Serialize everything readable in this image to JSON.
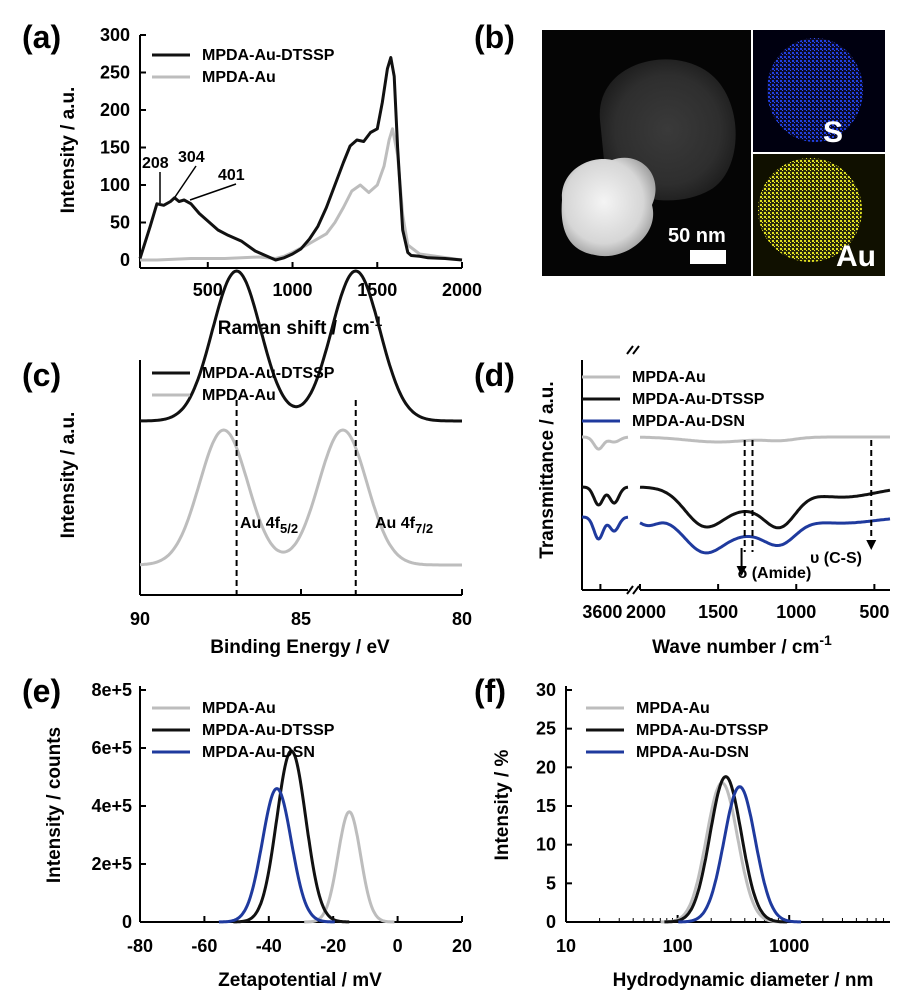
{
  "panels": {
    "a": "(a)",
    "b": "(b)",
    "c": "(c)",
    "d": "(d)",
    "e": "(e)",
    "f": "(f)"
  },
  "panel_b": {
    "scale_text": "50 nm",
    "map_s_label": "S",
    "map_au_label": "Au",
    "colors": {
      "s_map": "#1c2fc8",
      "au_map": "#c8c81c"
    }
  },
  "colors": {
    "black": "#111111",
    "gray": "#bdbdbd",
    "blue": "#1f3a9e"
  },
  "chart_data": [
    {
      "panel": "a",
      "type": "line",
      "xlabel": "Raman shift / cm",
      "xlabel_sup": "-1",
      "ylabel": "Intensity / a.u.",
      "xlim": [
        100,
        2000
      ],
      "ylim": [
        0,
        300
      ],
      "xticks": [
        500,
        1000,
        1500,
        2000
      ],
      "yticks": [
        0,
        50,
        100,
        150,
        200,
        250,
        300
      ],
      "legend_position": "top-left",
      "series": [
        {
          "name": "MPDA-Au-DTSSP",
          "color": "#111111",
          "x": [
            100,
            160,
            200,
            240,
            280,
            304,
            330,
            360,
            401,
            450,
            500,
            560,
            620,
            700,
            780,
            850,
            900,
            950,
            1000,
            1050,
            1100,
            1150,
            1200,
            1250,
            1300,
            1340,
            1380,
            1420,
            1460,
            1500,
            1530,
            1560,
            1580,
            1600,
            1620,
            1650,
            1680,
            1700,
            1750,
            1800,
            1900,
            2000
          ],
          "y": [
            2,
            45,
            75,
            73,
            78,
            83,
            78,
            80,
            75,
            62,
            52,
            40,
            33,
            25,
            12,
            5,
            0,
            3,
            8,
            15,
            28,
            45,
            70,
            100,
            130,
            152,
            160,
            158,
            170,
            175,
            210,
            255,
            270,
            245,
            150,
            40,
            10,
            6,
            5,
            3,
            2,
            0
          ]
        },
        {
          "name": "MPDA-Au",
          "color": "#bdbdbd",
          "x": [
            100,
            200,
            300,
            400,
            500,
            600,
            700,
            800,
            900,
            950,
            1000,
            1100,
            1200,
            1250,
            1300,
            1350,
            1400,
            1450,
            1500,
            1540,
            1570,
            1590,
            1620,
            1650,
            1680,
            1750,
            1850,
            2000
          ],
          "y": [
            0,
            0,
            1,
            2,
            2,
            2,
            3,
            4,
            2,
            5,
            10,
            22,
            35,
            50,
            70,
            92,
            100,
            90,
            100,
            125,
            160,
            175,
            140,
            60,
            20,
            8,
            5,
            0
          ]
        }
      ],
      "annotations": [
        "208",
        "304",
        "401"
      ]
    },
    {
      "panel": "c",
      "type": "line",
      "xlabel": "Binding Energy / eV",
      "ylabel": "Intensity / a.u.",
      "xlim": [
        90,
        80
      ],
      "xticks": [
        90,
        85,
        80
      ],
      "legend_position": "top-left",
      "series": [
        {
          "name": "MPDA-Au-DTSSP",
          "color": "#111111",
          "peaks": [
            87.0,
            83.3
          ],
          "baseline": 0.48,
          "height": 0.5
        },
        {
          "name": "MPDA-Au",
          "color": "#bdbdbd",
          "peaks": [
            87.4,
            83.7
          ],
          "baseline": 0.0,
          "height": 0.45
        }
      ],
      "annotations": {
        "au45": "Au 4f",
        "au45_sub": "5/2",
        "au47": "Au 4f",
        "au47_sub": "7/2",
        "ref_lines": [
          87.0,
          83.3
        ]
      }
    },
    {
      "panel": "d",
      "type": "line",
      "xlabel": "Wave number / cm",
      "xlabel_sup": "-1",
      "ylabel": "Transmittance / a.u.",
      "xticks_left": [
        3600
      ],
      "xticks_right": [
        2000,
        1500,
        1000,
        500
      ],
      "tick_text": {
        "t3600": "3600",
        "t2000": "2000",
        "t1500": "1500",
        "t1000": "1000",
        "t500": "500"
      },
      "legend_position": "top-left",
      "series": [
        {
          "name": "MPDA-Au",
          "color": "#bdbdbd"
        },
        {
          "name": "MPDA-Au-DTSSP",
          "color": "#111111"
        },
        {
          "name": "MPDA-Au-DSN",
          "color": "#1f3a9e"
        }
      ],
      "annotations": {
        "amide": "δ (Amide)",
        "cs": "υ (C-S)",
        "amide_lines": [
          1330,
          1280
        ],
        "cs_line": 520
      }
    },
    {
      "panel": "e",
      "type": "line",
      "xlabel": "Zetapotential / mV",
      "ylabel": "Intensity / counts",
      "xlim": [
        -80,
        20
      ],
      "ylim": [
        0,
        800000
      ],
      "xticks": [
        -80,
        -60,
        -40,
        -20,
        0,
        20
      ],
      "yticks": [
        0,
        200000,
        400000,
        600000,
        800000
      ],
      "ytick_labels": [
        "0",
        "2e+5",
        "4e+5",
        "6e+5",
        "8e+5"
      ],
      "legend_position": "top-left",
      "series": [
        {
          "name": "MPDA-Au",
          "color": "#bdbdbd",
          "center": -15,
          "sigma": 3.5,
          "peak": 380000
        },
        {
          "name": "MPDA-Au-DTSSP",
          "color": "#111111",
          "center": -33,
          "sigma": 4.5,
          "peak": 590000
        },
        {
          "name": "MPDA-Au-DSN",
          "color": "#1f3a9e",
          "center": -37.5,
          "sigma": 4.5,
          "peak": 460000
        }
      ]
    },
    {
      "panel": "f",
      "type": "line",
      "xlabel": "Hydrodynamic diameter / nm",
      "ylabel": "Intensity / %",
      "xscale": "log",
      "xlim": [
        10,
        8000
      ],
      "ylim": [
        0,
        30
      ],
      "xticks": [
        10,
        100,
        1000
      ],
      "yticks": [
        0,
        5,
        10,
        15,
        20,
        25,
        30
      ],
      "legend_position": "top-left",
      "series": [
        {
          "name": "MPDA-Au",
          "color": "#bdbdbd",
          "center": 250,
          "sigma_log": 0.14,
          "peak": 18
        },
        {
          "name": "MPDA-Au-DTSSP",
          "color": "#111111",
          "center": 270,
          "sigma_log": 0.14,
          "peak": 18.8
        },
        {
          "name": "MPDA-Au-DSN",
          "color": "#1f3a9e",
          "center": 360,
          "sigma_log": 0.14,
          "peak": 17.5
        }
      ]
    }
  ]
}
